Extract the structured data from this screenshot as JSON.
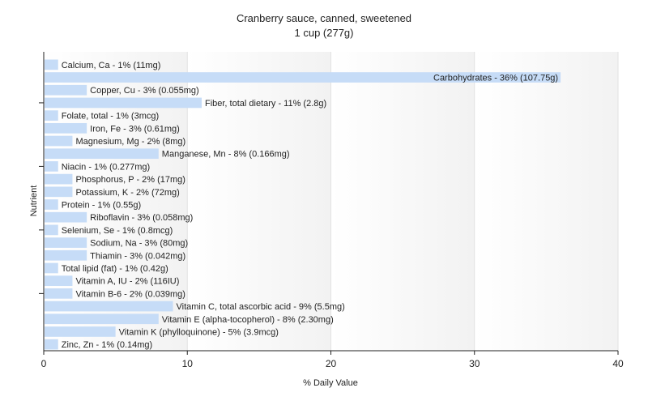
{
  "chart_data": {
    "type": "bar",
    "orientation": "horizontal",
    "title": "Cranberry sauce, canned, sweetened",
    "subtitle": "1 cup (277g)",
    "xlabel": "% Daily Value",
    "ylabel": "Nutrient",
    "xlim": [
      0,
      40
    ],
    "xticks": [
      "0",
      "10",
      "20",
      "30",
      "40"
    ],
    "grid": true,
    "bar_color": "#c6dcf7",
    "categories": [
      "Calcium, Ca",
      "Carbohydrates",
      "Copper, Cu",
      "Fiber, total dietary",
      "Folate, total",
      "Iron, Fe",
      "Magnesium, Mg",
      "Manganese, Mn",
      "Niacin",
      "Phosphorus, P",
      "Potassium, K",
      "Protein",
      "Riboflavin",
      "Selenium, Se",
      "Sodium, Na",
      "Thiamin",
      "Total lipid (fat)",
      "Vitamin A, IU",
      "Vitamin B-6",
      "Vitamin C, total ascorbic acid",
      "Vitamin E (alpha-tocopherol)",
      "Vitamin K (phylloquinone)",
      "Zinc, Zn"
    ],
    "values": [
      1,
      36,
      3,
      11,
      1,
      3,
      2,
      8,
      1,
      2,
      2,
      1,
      3,
      1,
      3,
      3,
      1,
      2,
      2,
      9,
      8,
      5,
      1
    ],
    "labels": [
      "Calcium, Ca - 1% (11mg)",
      "Carbohydrates - 36% (107.75g)",
      "Copper, Cu - 3% (0.055mg)",
      "Fiber, total dietary - 11% (2.8g)",
      "Folate, total - 1% (3mcg)",
      "Iron, Fe - 3% (0.61mg)",
      "Magnesium, Mg - 2% (8mg)",
      "Manganese, Mn - 8% (0.166mg)",
      "Niacin - 1% (0.277mg)",
      "Phosphorus, P - 2% (17mg)",
      "Potassium, K - 2% (72mg)",
      "Protein - 1% (0.55g)",
      "Riboflavin - 3% (0.058mg)",
      "Selenium, Se - 1% (0.8mcg)",
      "Sodium, Na - 3% (80mg)",
      "Thiamin - 3% (0.042mg)",
      "Total lipid (fat) - 1% (0.42g)",
      "Vitamin A, IU - 2% (116IU)",
      "Vitamin B-6 - 2% (0.039mg)",
      "Vitamin C, total ascorbic acid - 9% (5.5mg)",
      "Vitamin E (alpha-tocopherol) - 8% (2.30mg)",
      "Vitamin K (phylloquinone) - 5% (3.9mcg)",
      "Zinc, Zn - 1% (0.14mg)"
    ]
  }
}
